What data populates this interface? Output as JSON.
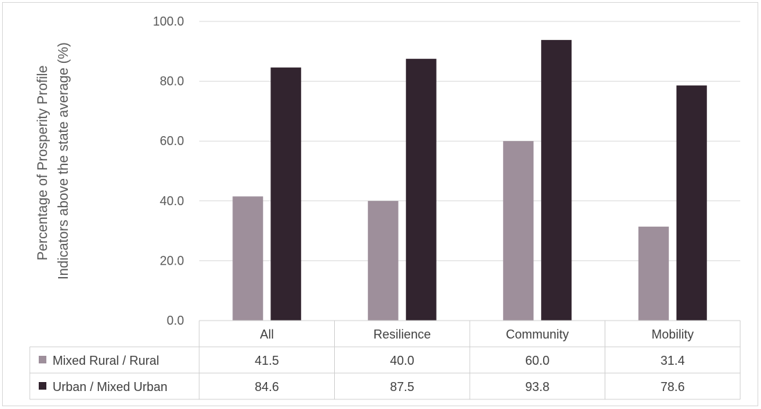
{
  "chart_data": {
    "type": "bar",
    "title": "",
    "xlabel": "",
    "ylabel_lines": [
      "Percentage of Prosperity Profile",
      "Indicators above the state average (%)"
    ],
    "ylim": [
      0,
      100
    ],
    "yticks": [
      "0.0",
      "20.0",
      "40.0",
      "60.0",
      "80.0",
      "100.0"
    ],
    "categories": [
      "All",
      "Resilience",
      "Community",
      "Mobility"
    ],
    "series": [
      {
        "name": "Mixed Rural / Rural",
        "values": [
          41.5,
          40.0,
          60.0,
          31.4
        ],
        "labels": [
          "41.5",
          "40.0",
          "60.0",
          "31.4"
        ],
        "color": "#9e8f9b"
      },
      {
        "name": "Urban / Mixed Urban",
        "values": [
          84.6,
          87.5,
          93.8,
          78.6
        ],
        "labels": [
          "84.6",
          "87.5",
          "93.8",
          "78.6"
        ],
        "color": "#32242f"
      }
    ],
    "grid": true,
    "legend": "data-table"
  }
}
